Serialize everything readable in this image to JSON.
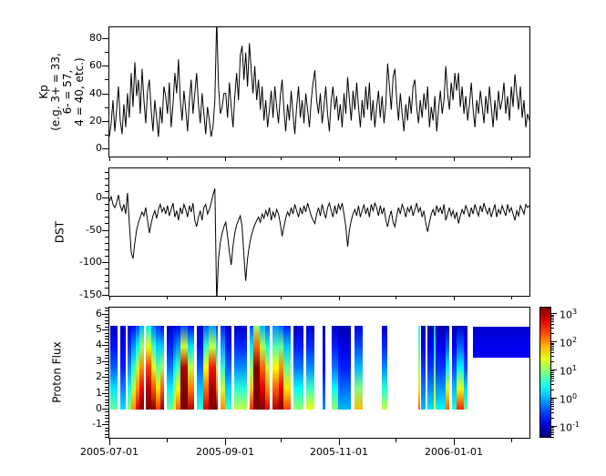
{
  "figure": {
    "bg": "#ffffff",
    "fg": "#000000"
  },
  "x_axis": {
    "major_ticks": [
      {
        "f": 0.0011,
        "label": "2005-07-01"
      },
      {
        "f": 0.2756,
        "label": "2005-09-01"
      },
      {
        "f": 0.5467,
        "label": "2005-11-01"
      },
      {
        "f": 0.8178,
        "label": "2006-01-01"
      }
    ],
    "minor_ticks": [
      0.1378,
      0.4089,
      0.68,
      0.9556
    ]
  },
  "chart_data": [
    {
      "id": "kp",
      "type": "line",
      "ylabel_lines": [
        "Kp",
        "(e.g. 3+ = 33,",
        "6- = 57,",
        "4 = 40, etc.)"
      ],
      "ylim": [
        -6.5,
        88.6
      ],
      "yticks": [
        {
          "v": 0,
          "label": "0"
        },
        {
          "v": 20,
          "label": "20"
        },
        {
          "v": 40,
          "label": "40"
        },
        {
          "v": 60,
          "label": "60"
        },
        {
          "v": 80,
          "label": "80"
        }
      ],
      "yminors": [
        10,
        30,
        50,
        70
      ],
      "line_color": "#000000",
      "x_range": [
        "2005-07-01",
        "2006-02-11"
      ],
      "values": [
        8,
        18,
        35,
        12,
        28,
        45,
        20,
        10,
        32,
        15,
        40,
        22,
        55,
        30,
        63,
        38,
        50,
        25,
        58,
        35,
        18,
        42,
        50,
        28,
        12,
        35,
        22,
        8,
        30,
        18,
        45,
        38,
        25,
        48,
        15,
        32,
        55,
        40,
        65,
        35,
        20,
        42,
        28,
        12,
        35,
        50,
        25,
        40,
        55,
        32,
        18,
        40,
        25,
        10,
        30,
        20,
        8,
        15,
        35,
        95,
        45,
        25,
        30,
        40,
        40,
        22,
        48,
        30,
        15,
        38,
        55,
        35,
        68,
        75,
        50,
        70,
        45,
        77,
        58,
        40,
        60,
        35,
        50,
        28,
        45,
        20,
        35,
        15,
        28,
        42,
        22,
        45,
        30,
        18,
        38,
        50,
        28,
        12,
        32,
        20,
        42,
        25,
        10,
        30,
        45,
        22,
        35,
        18,
        40,
        28,
        15,
        35,
        48,
        57,
        35,
        25,
        40,
        18,
        30,
        45,
        25,
        12,
        35,
        45,
        28,
        38,
        20,
        32,
        15,
        40,
        25,
        52,
        35,
        20,
        42,
        28,
        48,
        30,
        15,
        35,
        22,
        45,
        28,
        48,
        20,
        35,
        15,
        30,
        42,
        22,
        38,
        18,
        32,
        62,
        45,
        28,
        52,
        58,
        35,
        20,
        40,
        25,
        12,
        32,
        20,
        38,
        25,
        45,
        50,
        30,
        18,
        35,
        22,
        40,
        28,
        45,
        15,
        30,
        20,
        38,
        12,
        28,
        42,
        25,
        35,
        60,
        40,
        28,
        48,
        35,
        55,
        42,
        55,
        30,
        45,
        25,
        38,
        20,
        32,
        48,
        28,
        15,
        35,
        25,
        42,
        30,
        18,
        38,
        25,
        45,
        30,
        15,
        35,
        20,
        42,
        28,
        35,
        48,
        25,
        38,
        20,
        45,
        30,
        54,
        40,
        28,
        45,
        22,
        35,
        15,
        25,
        20
      ]
    },
    {
      "id": "dst",
      "type": "line",
      "ylabel": "DST",
      "ylim": [
        -153.5,
        46.5
      ],
      "yticks": [
        {
          "v": 0,
          "label": "0"
        },
        {
          "v": -50,
          "label": "-50"
        },
        {
          "v": -100,
          "label": "-100"
        },
        {
          "v": -150,
          "label": "-150"
        }
      ],
      "yminors": [
        40,
        30,
        20,
        10,
        -10,
        -20,
        -30,
        -40,
        -60,
        -70,
        -80,
        -90,
        -110,
        -120,
        -130,
        -140
      ],
      "line_color": "#000000",
      "x_range": [
        "2005-07-01",
        "2006-02-11"
      ],
      "values": [
        -5,
        2,
        -10,
        -15,
        -8,
        5,
        -12,
        -20,
        -10,
        -25,
        8,
        -40,
        -85,
        -95,
        -70,
        -50,
        -38,
        -30,
        -22,
        -28,
        -15,
        -35,
        -55,
        -40,
        -28,
        -20,
        -32,
        -18,
        -10,
        -22,
        -15,
        -25,
        -12,
        -28,
        -18,
        -8,
        -30,
        -20,
        -35,
        -15,
        -25,
        -10,
        -18,
        -30,
        -12,
        -22,
        -8,
        -35,
        -45,
        -30,
        -20,
        -35,
        -15,
        -10,
        -25,
        -18,
        -8,
        5,
        15,
        -165,
        -95,
        -70,
        -55,
        -45,
        -38,
        -60,
        -85,
        -105,
        -75,
        -55,
        -42,
        -35,
        -28,
        -45,
        -90,
        -130,
        -95,
        -75,
        -60,
        -50,
        -42,
        -35,
        -30,
        -38,
        -25,
        -32,
        -20,
        -28,
        -15,
        -35,
        -22,
        -30,
        -18,
        -25,
        -40,
        -60,
        -45,
        -32,
        -22,
        -28,
        -15,
        -25,
        -10,
        -20,
        -30,
        -15,
        -25,
        -12,
        -22,
        -8,
        -18,
        -28,
        -35,
        -40,
        -25,
        -15,
        -28,
        -10,
        -22,
        -32,
        -15,
        -8,
        -20,
        -30,
        -12,
        -25,
        -10,
        -18,
        -8,
        -25,
        -45,
        -76,
        -50,
        -35,
        -25,
        -18,
        -28,
        -12,
        -30,
        -20,
        -10,
        -25,
        -15,
        -30,
        -10,
        -20,
        -8,
        -15,
        -28,
        -12,
        -25,
        -15,
        -35,
        -45,
        -30,
        -20,
        -38,
        -45,
        -28,
        -15,
        -25,
        -10,
        -18,
        -30,
        -15,
        -22,
        -12,
        -28,
        -18,
        -8,
        -22,
        -15,
        -30,
        -20,
        -40,
        -53,
        -38,
        -25,
        -18,
        -28,
        -12,
        -22,
        -15,
        -25,
        -10,
        -35,
        -25,
        -15,
        -28,
        -20,
        -32,
        -22,
        -40,
        -28,
        -18,
        -25,
        -12,
        -20,
        -30,
        -15,
        -25,
        -10,
        -20,
        -28,
        -12,
        -22,
        -8,
        -18,
        -25,
        -15,
        -30,
        -20,
        -10,
        -30,
        -18,
        -25,
        -12,
        -20,
        -28,
        -10,
        -22,
        -15,
        -25,
        -35,
        -20,
        -28,
        -12,
        -18,
        -25,
        -10,
        -15,
        -12
      ]
    },
    {
      "id": "flux",
      "type": "heatmap",
      "ylabel": "Proton Flux",
      "ylim": [
        -1.9,
        6.44
      ],
      "yticks": [
        {
          "v": -1,
          "label": "-1"
        },
        {
          "v": 0,
          "label": "0"
        },
        {
          "v": 1,
          "label": "1"
        },
        {
          "v": 2,
          "label": "2"
        },
        {
          "v": 3,
          "label": "3"
        },
        {
          "v": 4,
          "label": "4"
        },
        {
          "v": 5,
          "label": "5"
        },
        {
          "v": 6,
          "label": "6"
        }
      ],
      "yminor_step": 0.2,
      "colormap": "jet",
      "clim_log10": [
        -1.42,
        3.23
      ],
      "x_range": [
        "2005-07-01",
        "2006-02-11"
      ],
      "segments_doc": "each: [x0px,x1px, log10flux@bottom, @mid, @top, y_bottom, y_top] on 0..463px time axis",
      "segments": [
        [
          1,
          9,
          0.8,
          -0.4,
          -1.1,
          0,
          5.3
        ],
        [
          12,
          18,
          0.2,
          -0.7,
          -1.1,
          0,
          5.3
        ],
        [
          20,
          24,
          1.0,
          -0.2,
          -1.0,
          0,
          5.3
        ],
        [
          24,
          29,
          2.0,
          0.5,
          -0.8,
          0,
          5.3
        ],
        [
          29,
          33,
          2.8,
          1.2,
          -0.5,
          0,
          5.3
        ],
        [
          33,
          38,
          3.4,
          2.0,
          0.0,
          0,
          5.3
        ],
        [
          40,
          46,
          3.6,
          2.4,
          0.3,
          0,
          5.3
        ],
        [
          46,
          51,
          3.2,
          1.4,
          -0.3,
          0,
          5.3
        ],
        [
          51,
          56,
          2.4,
          0.8,
          -0.6,
          0,
          5.3
        ],
        [
          56,
          60,
          3.5,
          1.0,
          -0.8,
          0,
          5.3
        ],
        [
          63,
          70,
          0.8,
          -0.3,
          -1.1,
          0,
          5.3
        ],
        [
          70,
          73,
          1.6,
          0.3,
          -1.0,
          0,
          5.3
        ],
        [
          73,
          78,
          2.2,
          0.6,
          -0.9,
          0,
          5.3
        ],
        [
          78,
          86,
          3.7,
          3.0,
          -0.5,
          0,
          5.3
        ],
        [
          86,
          93,
          3.0,
          1.2,
          -0.8,
          0,
          5.3
        ],
        [
          96,
          103,
          0.5,
          -0.4,
          -1.1,
          0,
          5.3
        ],
        [
          103,
          109,
          2.8,
          1.5,
          -0.4,
          0,
          5.3
        ],
        [
          109,
          117,
          3.6,
          2.6,
          -0.1,
          0,
          5.3
        ],
        [
          117,
          119,
          3.2,
          1.0,
          -0.6,
          0,
          5.3
        ],
        [
          122,
          127,
          2.0,
          0.5,
          -0.7,
          0,
          5.3
        ],
        [
          127,
          134,
          0.6,
          -0.4,
          -1.1,
          0,
          5.3
        ],
        [
          137,
          151,
          1.2,
          -0.2,
          -1.1,
          0,
          5.3
        ],
        [
          154,
          158,
          2.5,
          1.0,
          -0.5,
          0,
          5.3
        ],
        [
          158,
          165,
          3.8,
          3.4,
          1.0,
          0,
          5.3
        ],
        [
          165,
          171,
          3.4,
          2.2,
          0.0,
          0,
          5.3
        ],
        [
          171,
          176,
          2.8,
          1.2,
          -0.4,
          0,
          5.3
        ],
        [
          179,
          186,
          3.0,
          1.5,
          -0.2,
          0,
          5.3
        ],
        [
          186,
          191,
          3.6,
          2.0,
          -0.4,
          0,
          5.3
        ],
        [
          191,
          199,
          2.4,
          0.8,
          -0.7,
          0,
          5.3
        ],
        [
          202,
          213,
          1.0,
          -0.3,
          -1.1,
          0,
          5.3
        ],
        [
          216,
          225,
          1.4,
          -0.2,
          -1.1,
          0,
          5.3
        ],
        [
          234,
          237,
          -0.2,
          -0.8,
          -1.2,
          0,
          5.3
        ],
        [
          244,
          251,
          1.0,
          -0.3,
          -1.1,
          0,
          5.3
        ],
        [
          251,
          265,
          0.0,
          -0.7,
          -1.2,
          0,
          5.3
        ],
        [
          269,
          278,
          1.8,
          0.0,
          -1.0,
          0,
          5.3
        ],
        [
          299,
          305,
          1.2,
          -0.2,
          -1.1,
          0,
          5.3
        ],
        [
          339,
          341,
          2.2,
          1.0,
          0.5,
          0,
          5.3
        ],
        [
          342,
          347,
          0.0,
          -0.6,
          -1.2,
          0,
          5.3
        ],
        [
          349,
          356,
          0.2,
          -0.6,
          -1.2,
          0,
          5.3
        ],
        [
          356,
          358,
          1.5,
          0.8,
          0.0,
          0,
          5.3
        ],
        [
          358,
          369,
          0.3,
          -0.6,
          -1.2,
          0,
          5.3
        ],
        [
          369,
          373,
          2.2,
          0.3,
          -1.1,
          0,
          5.3
        ],
        [
          376,
          381,
          0.5,
          -0.5,
          -1.2,
          0,
          5.3
        ],
        [
          381,
          389,
          2.5,
          0.3,
          -1.1,
          0,
          5.3
        ],
        [
          389,
          393,
          0.8,
          -0.5,
          -1.2,
          0,
          5.3
        ],
        [
          399,
          463,
          -0.85,
          -0.95,
          -1.05,
          3.3,
          5.25
        ]
      ]
    }
  ],
  "colorbar": {
    "scale": "log",
    "range_log10": [
      -1.42,
      3.23
    ],
    "ticks": [
      {
        "exp": 3,
        "base": "10",
        "sup": "3"
      },
      {
        "exp": 2,
        "base": "10",
        "sup": "2"
      },
      {
        "exp": 1,
        "base": "10",
        "sup": "1"
      },
      {
        "exp": 0,
        "base": "10",
        "sup": "0"
      },
      {
        "exp": -1,
        "base": "10",
        "sup": "-1"
      }
    ]
  }
}
